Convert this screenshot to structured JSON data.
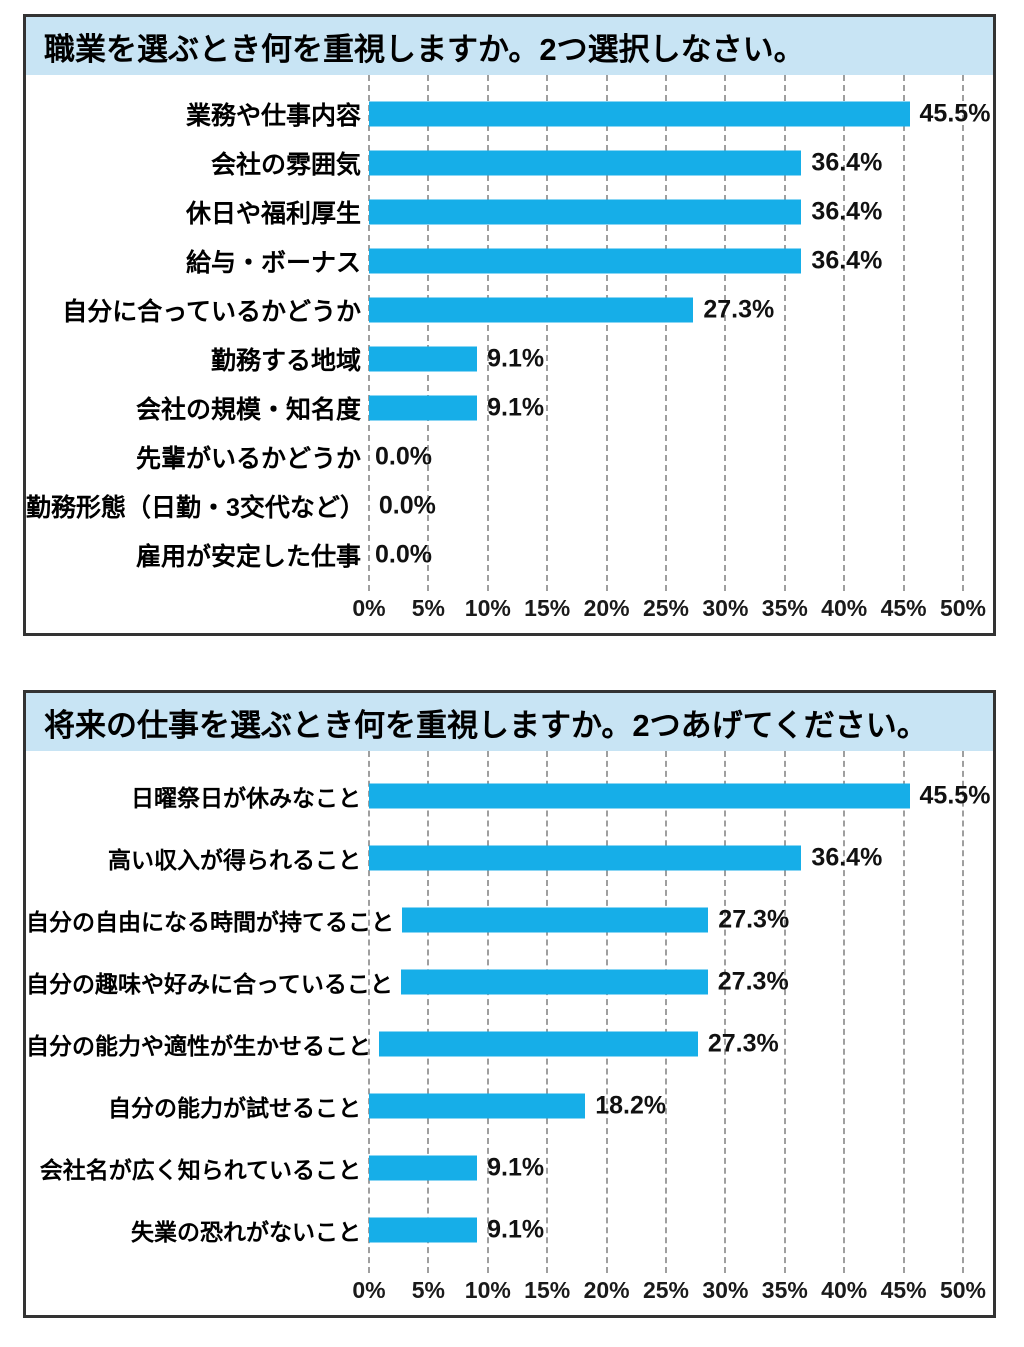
{
  "style": {
    "bar_color": "#16aee8",
    "title_background": "#c8e4f4",
    "panel_border_color": "#333333",
    "gridline_color": "#9f9f9f"
  },
  "chart_data": [
    {
      "type": "bar",
      "orientation": "horizontal",
      "title": "職業を選ぶとき何を重視しますか。2つ選択しなさい。",
      "categories": [
        "業務や仕事内容",
        "会社の雰囲気",
        "休日や福利厚生",
        "給与・ボーナス",
        "自分に合っているかどうか",
        "勤務する地域",
        "会社の規模・知名度",
        "先輩がいるかどうか",
        "勤務形態（日勤・3交代など）",
        "雇用が安定した仕事"
      ],
      "values": [
        45.5,
        36.4,
        36.4,
        36.4,
        27.3,
        9.1,
        9.1,
        0.0,
        0.0,
        0.0
      ],
      "value_labels": [
        "45.5%",
        "36.4%",
        "36.4%",
        "36.4%",
        "27.3%",
        "9.1%",
        "9.1%",
        "0.0%",
        "0.0%",
        "0.0%"
      ],
      "xlabel": "",
      "ylabel": "",
      "xlim": [
        0,
        50
      ],
      "x_ticks": [
        "0%",
        "5%",
        "10%",
        "15%",
        "20%",
        "25%",
        "30%",
        "35%",
        "40%",
        "45%",
        "50%"
      ],
      "grid": "vertical-dashed",
      "legend": "none"
    },
    {
      "type": "bar",
      "orientation": "horizontal",
      "title": "将来の仕事を選ぶとき何を重視しますか。2つあげてください。",
      "categories": [
        "日曜祭日が休みなこと",
        "高い収入が得られること",
        "自分の自由になる時間が持てること",
        "自分の趣味や好みに合っていること",
        "自分の能力や適性が生かせること",
        "自分の能力が試せること",
        "会社名が広く知られていること",
        "失業の恐れがないこと"
      ],
      "values": [
        45.5,
        36.4,
        27.3,
        27.3,
        27.3,
        18.2,
        9.1,
        9.1
      ],
      "value_labels": [
        "45.5%",
        "36.4%",
        "27.3%",
        "27.3%",
        "27.3%",
        "18.2%",
        "9.1%",
        "9.1%"
      ],
      "xlabel": "",
      "ylabel": "",
      "xlim": [
        0,
        50
      ],
      "x_ticks": [
        "0%",
        "5%",
        "10%",
        "15%",
        "20%",
        "25%",
        "30%",
        "35%",
        "40%",
        "45%",
        "50%"
      ],
      "grid": "vertical-dashed",
      "legend": "none"
    }
  ]
}
